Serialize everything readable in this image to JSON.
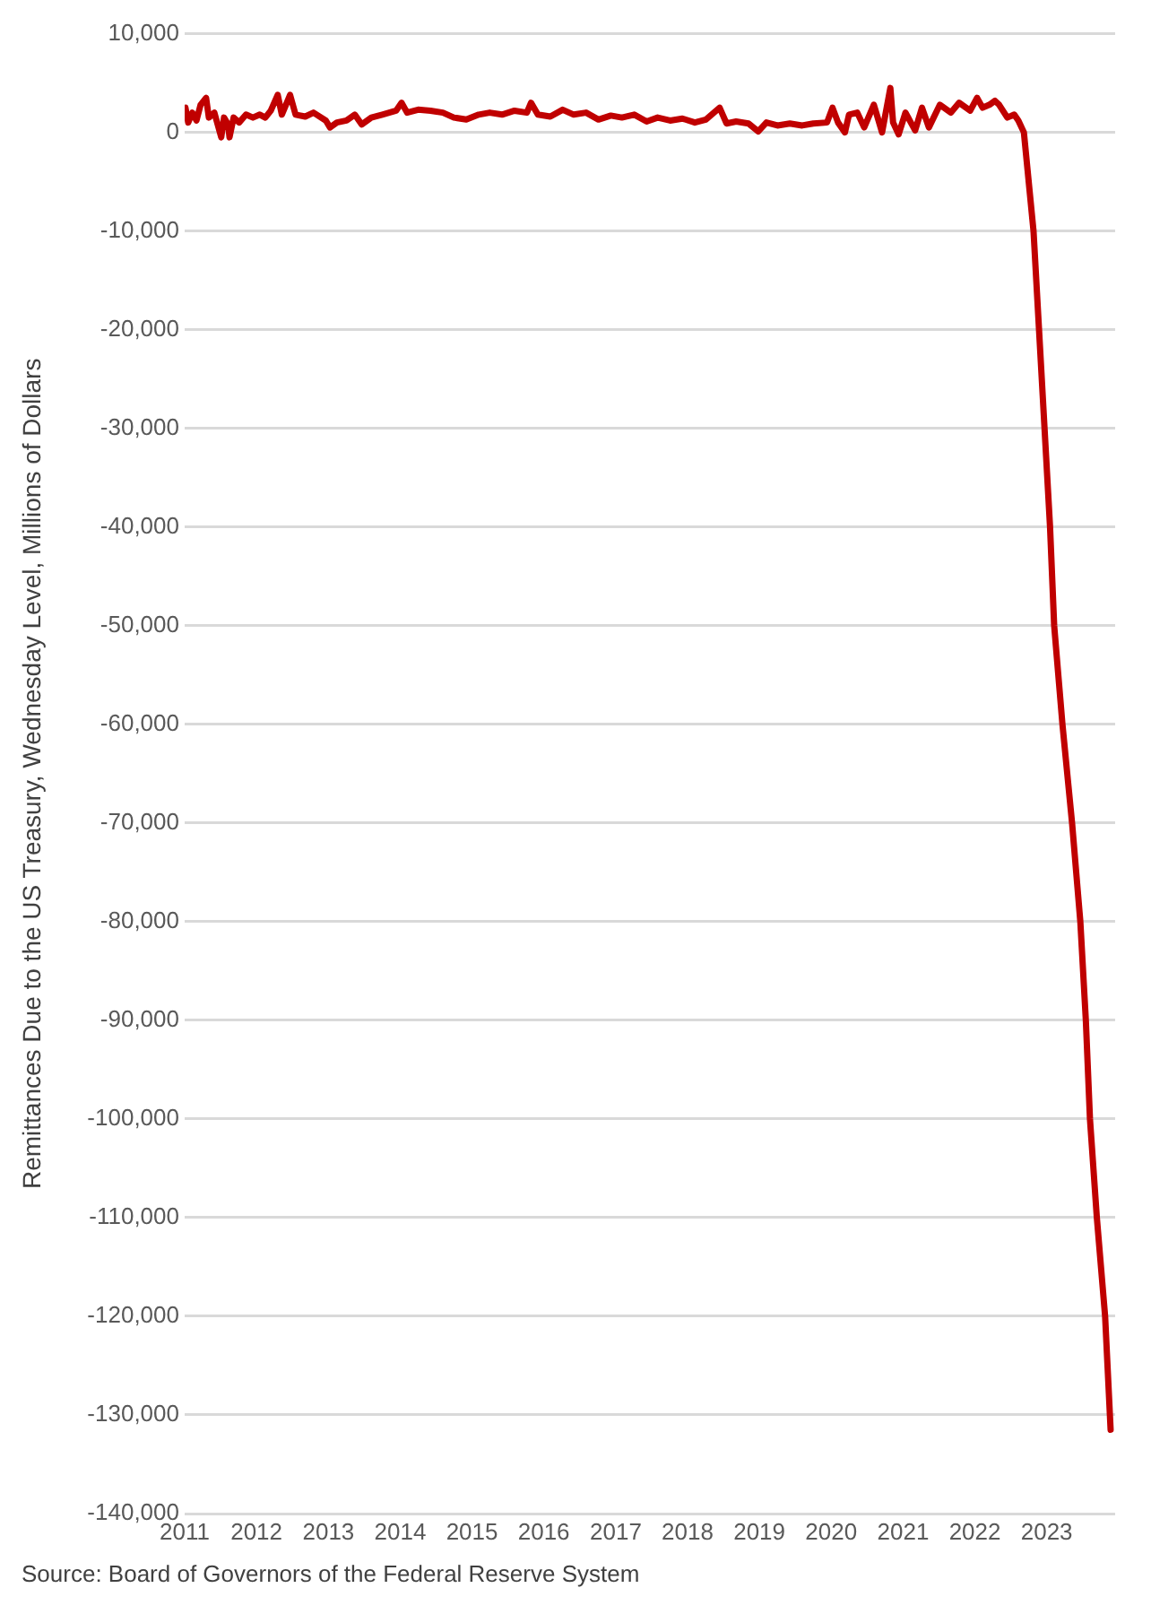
{
  "chart_data": {
    "type": "line",
    "ylabel": "Remittances Due to the US Treasury, Wednesday Level, Millions of Dollars",
    "annotations": [
      "Source: Board of Governors of the Federal Reserve System"
    ],
    "x": [
      "2011-01-05",
      "2011-01-19",
      "2011-02-09",
      "2011-03-02",
      "2011-03-23",
      "2011-04-20",
      "2011-05-04",
      "2011-06-01",
      "2011-07-06",
      "2011-07-20",
      "2011-08-10",
      "2011-08-17",
      "2011-09-07",
      "2011-10-05",
      "2011-11-09",
      "2011-12-14",
      "2012-01-18",
      "2012-02-15",
      "2012-03-14",
      "2012-04-18",
      "2012-05-09",
      "2012-06-20",
      "2012-07-18",
      "2012-09-05",
      "2012-10-17",
      "2012-12-19",
      "2013-01-09",
      "2013-02-13",
      "2013-04-03",
      "2013-05-15",
      "2013-06-19",
      "2013-08-07",
      "2013-10-02",
      "2013-12-11",
      "2014-01-08",
      "2014-02-05",
      "2014-04-02",
      "2014-06-04",
      "2014-08-06",
      "2014-10-01",
      "2014-12-03",
      "2015-02-04",
      "2015-04-01",
      "2015-06-03",
      "2015-08-05",
      "2015-10-07",
      "2015-10-28",
      "2015-12-02",
      "2016-02-03",
      "2016-04-06",
      "2016-06-01",
      "2016-08-03",
      "2016-10-05",
      "2016-12-07",
      "2017-02-01",
      "2017-04-05",
      "2017-06-07",
      "2017-08-02",
      "2017-10-04",
      "2017-12-06",
      "2018-02-07",
      "2018-04-04",
      "2018-06-13",
      "2018-07-18",
      "2018-09-05",
      "2018-11-07",
      "2018-12-26",
      "2019-02-06",
      "2019-04-03",
      "2019-06-05",
      "2019-08-07",
      "2019-10-02",
      "2019-12-11",
      "2020-01-08",
      "2020-02-05",
      "2020-03-11",
      "2020-04-01",
      "2020-05-13",
      "2020-06-17",
      "2020-08-05",
      "2020-09-16",
      "2020-10-28",
      "2020-11-11",
      "2020-12-09",
      "2021-01-13",
      "2021-03-03",
      "2021-04-07",
      "2021-05-12",
      "2021-07-07",
      "2021-09-01",
      "2021-10-13",
      "2021-12-08",
      "2022-01-12",
      "2022-02-09",
      "2022-03-16",
      "2022-04-13",
      "2022-05-04",
      "2022-06-15",
      "2022-07-20",
      "2022-08-10",
      "2022-09-07",
      "2022-10-26",
      "2022-11-23",
      "2022-12-21",
      "2023-01-18",
      "2023-02-08",
      "2023-03-22",
      "2023-05-10",
      "2023-06-21",
      "2023-07-19",
      "2023-08-09",
      "2023-09-13",
      "2023-10-25",
      "2023-11-22"
    ],
    "series": [
      {
        "color": "#c00000",
        "values": [
          2500,
          1000,
          2000,
          1200,
          2800,
          3500,
          1500,
          2000,
          -500,
          1500,
          800,
          -500,
          1500,
          1000,
          1800,
          1500,
          1800,
          1500,
          2200,
          3800,
          1800,
          3800,
          1800,
          1600,
          2000,
          1200,
          500,
          1000,
          1200,
          1800,
          800,
          1500,
          1800,
          2200,
          3000,
          2000,
          2300,
          2200,
          2000,
          1500,
          1300,
          1800,
          2000,
          1800,
          2200,
          2000,
          3000,
          1800,
          1600,
          2300,
          1800,
          2000,
          1300,
          1700,
          1500,
          1800,
          1100,
          1500,
          1200,
          1400,
          1000,
          1300,
          2500,
          900,
          1100,
          900,
          100,
          1000,
          700,
          900,
          700,
          900,
          1000,
          2500,
          1000,
          0,
          1800,
          2000,
          500,
          2800,
          0,
          4500,
          1000,
          -200,
          2000,
          200,
          2500,
          500,
          2800,
          2000,
          3000,
          2200,
          3500,
          2500,
          2800,
          3200,
          2800,
          1500,
          1800,
          1200,
          0,
          -10000,
          -20000,
          -30000,
          -40000,
          -50000,
          -60000,
          -70000,
          -80000,
          -90000,
          -100000,
          -110000,
          -120000,
          -131500
        ]
      }
    ],
    "xlim": [
      "2011-01-01",
      "2023-12-15"
    ],
    "xticks": [
      "2011",
      "2012",
      "2013",
      "2014",
      "2015",
      "2016",
      "2017",
      "2018",
      "2019",
      "2020",
      "2021",
      "2022",
      "2023"
    ],
    "ylim": [
      -140000,
      10000
    ],
    "yticks": [
      {
        "value": -140000,
        "label": "-140,000"
      },
      {
        "value": -130000,
        "label": "-130,000"
      },
      {
        "value": -120000,
        "label": "-120,000"
      },
      {
        "value": -110000,
        "label": "-110,000"
      },
      {
        "value": -100000,
        "label": "-100,000"
      },
      {
        "value": -90000,
        "label": "-90,000"
      },
      {
        "value": -80000,
        "label": "-80,000"
      },
      {
        "value": -70000,
        "label": "-70,000"
      },
      {
        "value": -60000,
        "label": "-60,000"
      },
      {
        "value": -50000,
        "label": "-50,000"
      },
      {
        "value": -40000,
        "label": "-40,000"
      },
      {
        "value": -30000,
        "label": "-30,000"
      },
      {
        "value": -20000,
        "label": "-20,000"
      },
      {
        "value": -10000,
        "label": "-10,000"
      },
      0,
      {
        "value": 10000,
        "label": "10,000"
      }
    ],
    "grid": "y",
    "legend": false,
    "marker": "none",
    "line_style": "solid"
  }
}
